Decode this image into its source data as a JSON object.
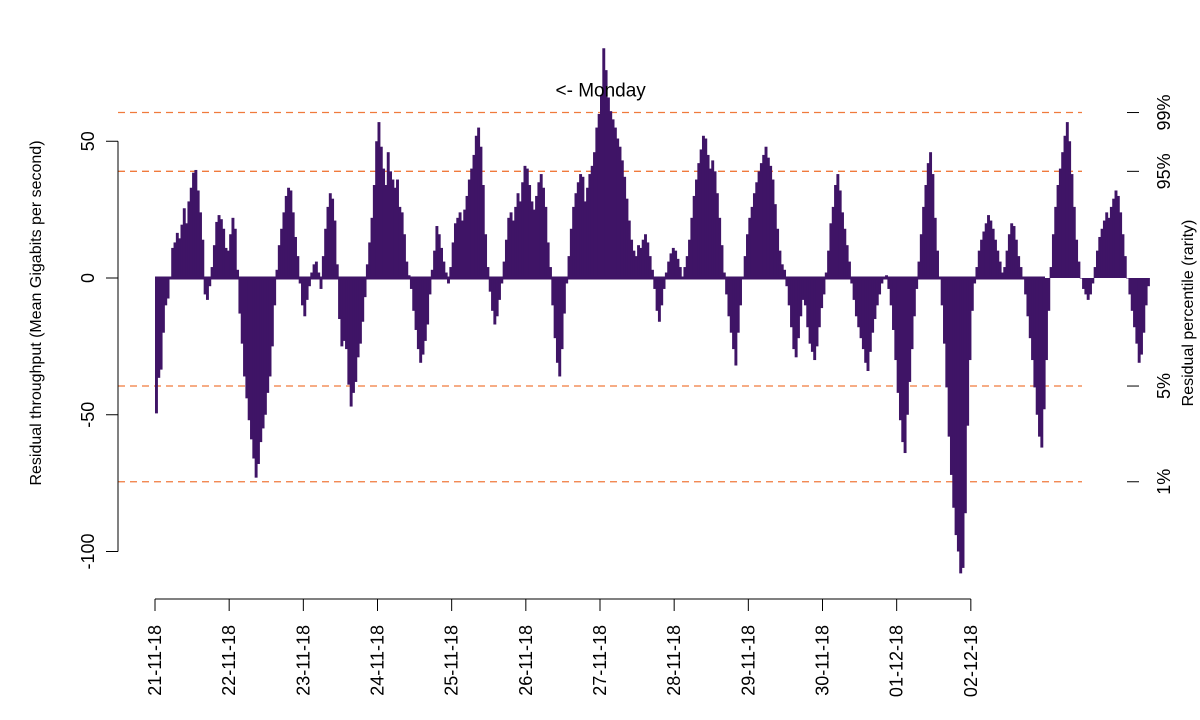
{
  "chart_data": {
    "type": "bar",
    "xlabel": "",
    "ylabel": "Residual throughput (Mean Gigabits per second)",
    "ylabel_right": "Residual percentile (rarity)",
    "ylim": [
      -115,
      85
    ],
    "y_ticks": [
      "50",
      "0",
      "-50",
      "-100"
    ],
    "x_tick_labels": [
      "21-11-18",
      "22-11-18",
      "23-11-18",
      "24-11-18",
      "25-11-18",
      "26-11-18",
      "27-11-18",
      "28-11-18",
      "29-11-18",
      "30-11-18",
      "01-12-18",
      "02-12-18"
    ],
    "x_range_days": [
      0,
      12
    ],
    "bar_color": "#3f1466",
    "threshold_color": "#f07a3c",
    "thresholds": [
      {
        "label": "99%",
        "value": 60.5
      },
      {
        "label": "95%",
        "value": 39
      },
      {
        "label": "5%",
        "value": -39.5
      },
      {
        "label": "1%",
        "value": -74.5
      }
    ],
    "annotation": {
      "text": "<- Monday",
      "x_day": 5.4,
      "y": 69
    },
    "series": [
      {
        "x_start_day": 0,
        "x_step_day": 0.03125,
        "values": [
          -49.5,
          -36.5,
          -33.5,
          -20,
          -10,
          -7.5,
          0.5,
          11,
          13,
          16.5,
          14.5,
          19.5,
          25.5,
          20,
          28,
          33,
          38.5,
          39.5,
          32,
          24,
          14,
          -6,
          -8,
          -3,
          4,
          12,
          20.5,
          23,
          21.5,
          18,
          11,
          10,
          16,
          22,
          18,
          3,
          -13,
          -24,
          -36,
          -44,
          -52,
          -59,
          -66,
          -73,
          -68,
          -60,
          -55,
          -50,
          -42,
          -36,
          -25,
          -10,
          3,
          12,
          18,
          24,
          30,
          33,
          32,
          24,
          15,
          8,
          -2,
          -10,
          -14,
          -8,
          -3,
          2,
          5,
          6,
          2,
          -4,
          8,
          18,
          26,
          31,
          29,
          21,
          5,
          -15,
          -25,
          -23,
          -26,
          -39,
          -47,
          -42,
          -38,
          -29,
          -24,
          -16,
          -7,
          5,
          13,
          22,
          34,
          50,
          57,
          48,
          40,
          34,
          46,
          39,
          36,
          33,
          36,
          26,
          24,
          16,
          6,
          1,
          -4,
          -12,
          -19,
          -26,
          -31,
          -28,
          -23,
          -17,
          -6,
          3,
          10,
          19,
          16,
          11,
          6,
          2,
          -2,
          4,
          13,
          20,
          22,
          24,
          21,
          25,
          30,
          36,
          40,
          45,
          52,
          55,
          48,
          34,
          16,
          4,
          -5,
          -12,
          -17,
          -14,
          -8,
          -2,
          6,
          14,
          22,
          24,
          21,
          26,
          31,
          28,
          35,
          41,
          40,
          34,
          28,
          25,
          30,
          35,
          38,
          33,
          26,
          13,
          4,
          -10,
          -22,
          -31,
          -36,
          -26,
          -13,
          -2,
          8,
          18,
          26,
          31,
          35,
          38,
          37,
          28,
          33,
          38,
          41,
          46,
          55,
          60,
          67,
          84,
          76,
          66,
          61,
          58,
          55,
          51,
          48,
          43,
          37,
          29,
          21,
          14,
          10,
          8,
          12,
          11,
          14,
          16,
          13,
          8,
          3,
          -4,
          -12,
          -16,
          -10,
          -4,
          2,
          6,
          9,
          11,
          10,
          7,
          4,
          0,
          4,
          8,
          14,
          22,
          30,
          36,
          42,
          47,
          52,
          51,
          45,
          40,
          43,
          39,
          31,
          22,
          12,
          2,
          -6,
          -14,
          -20,
          -26,
          -32,
          -20,
          -10,
          0,
          8,
          16,
          22,
          26,
          31,
          35,
          39,
          42,
          45,
          48,
          44,
          41,
          36,
          27,
          18,
          10,
          5,
          3,
          -3,
          -10,
          -18,
          -26,
          -29,
          -22,
          -14,
          -8,
          -10,
          -18,
          -24,
          -27,
          -30,
          -25,
          -18,
          -11,
          -6,
          2,
          10,
          20,
          26,
          34,
          38,
          32,
          24,
          18,
          12,
          6,
          -2,
          -8,
          -14,
          -18,
          -22,
          -26,
          -31,
          -34,
          -27,
          -20,
          -15,
          -10,
          -6,
          -2,
          0,
          1,
          -4,
          -10,
          -19,
          -30,
          -42,
          -52,
          -60,
          -64,
          -50,
          -38,
          -26,
          -14,
          -4,
          6,
          16,
          26,
          34,
          42,
          46,
          38,
          22,
          10,
          0,
          -10,
          -24,
          -40,
          -58,
          -72,
          -84,
          -94,
          -100,
          -108,
          -106,
          -86,
          -54,
          -30,
          -12,
          -2,
          4,
          10,
          14,
          17,
          20,
          23,
          21,
          18,
          14,
          10,
          6,
          2,
          4,
          10,
          16,
          20,
          19,
          14,
          8,
          4,
          0,
          -6,
          -14,
          -22,
          -30,
          -40,
          -50,
          -58,
          -62,
          -48,
          -30,
          -12,
          4,
          16,
          26,
          34,
          40,
          46,
          52,
          57,
          50,
          38,
          26,
          14,
          6,
          0,
          -4,
          -6,
          -8,
          -6,
          -2,
          4,
          10,
          15,
          18,
          21,
          24,
          22,
          26,
          29,
          32,
          30,
          24,
          16,
          8,
          0,
          -6,
          -12,
          -18,
          -24,
          -31,
          -28,
          -20,
          -10,
          -3
        ]
      }
    ]
  }
}
